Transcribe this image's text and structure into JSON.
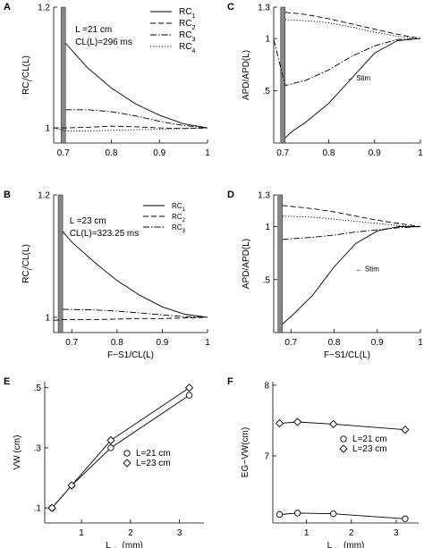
{
  "chart_data": [
    {
      "panel": "A",
      "type": "line",
      "ylabel": "RC_i/CL(L)",
      "xlim": [
        0.68,
        1.0
      ],
      "ylim": [
        0.975,
        1.2
      ],
      "xticks": [
        "0.7",
        "0.8",
        "0.9",
        "1"
      ],
      "yticks": [
        {
          "v": 1.0,
          "t": "1"
        },
        {
          "v": 1.2,
          "t": "1.2"
        }
      ],
      "annotation": [
        "L =21 cm",
        "CL(L)=296 ms"
      ],
      "legend": {
        "placement": "top-right",
        "entries": [
          "RC",
          "RC",
          "RC",
          "RC"
        ],
        "subscripts": [
          "1",
          "2",
          "3",
          "4"
        ],
        "styles": [
          "solid",
          "dashed",
          "dashdot",
          "dotted"
        ]
      },
      "stim_bar": 0.7,
      "series": [
        {
          "name": "RC1",
          "style": "solid",
          "x": [
            0.705,
            0.75,
            0.8,
            0.85,
            0.9,
            0.95,
            1.0
          ],
          "y": [
            1.14,
            1.1,
            1.066,
            1.04,
            1.021,
            1.007,
            1.0
          ]
        },
        {
          "name": "RC2",
          "style": "dashed",
          "x": [
            0.68,
            0.705,
            0.75,
            0.8,
            0.85,
            0.9,
            0.95,
            1.0
          ],
          "y": [
            1.0,
            1.0,
            1.001,
            1.003,
            1.002,
            1.0,
            0.999,
            1.0
          ]
        },
        {
          "name": "RC3",
          "style": "dashdot",
          "x": [
            0.705,
            0.75,
            0.8,
            0.85,
            0.9,
            0.95,
            1.0
          ],
          "y": [
            1.03,
            1.03,
            1.027,
            1.02,
            1.011,
            1.004,
            1.0
          ]
        },
        {
          "name": "RC4",
          "style": "dotted",
          "x": [
            0.68,
            0.705,
            0.75,
            0.8,
            0.85,
            0.9,
            0.95,
            1.0
          ],
          "y": [
            1.0,
            0.995,
            0.995,
            0.996,
            0.997,
            0.998,
            0.999,
            1.0
          ]
        }
      ]
    },
    {
      "panel": "B",
      "type": "line",
      "ylabel": "RC_i/CL(L)",
      "xlabel": "F−S1/CL(L)",
      "xlim": [
        0.66,
        1.0
      ],
      "ylim": [
        0.975,
        1.2
      ],
      "xticks": [
        "0.7",
        "0.8",
        "0.9",
        "1"
      ],
      "yticks": [
        {
          "v": 1.0,
          "t": "1"
        },
        {
          "v": 1.2,
          "t": "1.2"
        }
      ],
      "annotation": [
        "L =23 cm",
        "CL(L)=323.25 ms"
      ],
      "legend": {
        "placement": "top-right",
        "entries": [
          "RC",
          "RC",
          "RC"
        ],
        "subscripts": [
          "1",
          "2",
          "3"
        ],
        "styles": [
          "solid",
          "dashed",
          "dashdot"
        ]
      },
      "stim_bar": 0.675,
      "series": [
        {
          "name": "RC1",
          "style": "solid",
          "x": [
            0.68,
            0.7,
            0.75,
            0.8,
            0.85,
            0.9,
            0.95,
            1.0
          ],
          "y": [
            1.14,
            1.123,
            1.09,
            1.06,
            1.036,
            1.017,
            1.005,
            1.0
          ]
        },
        {
          "name": "RC2",
          "style": "dashed",
          "x": [
            0.66,
            0.68,
            0.75,
            0.8,
            0.85,
            0.9,
            0.95,
            1.0
          ],
          "y": [
            0.995,
            0.996,
            0.996,
            0.997,
            0.998,
            0.998,
            0.999,
            1.0
          ]
        },
        {
          "name": "RC3",
          "style": "dashdot",
          "x": [
            0.68,
            0.75,
            0.8,
            0.85,
            0.9,
            0.95,
            1.0
          ],
          "y": [
            1.013,
            1.012,
            1.01,
            1.007,
            1.004,
            1.001,
            1.0
          ]
        }
      ]
    },
    {
      "panel": "C",
      "type": "line",
      "ylabel": "APD/APD(L)",
      "xlim": [
        0.68,
        1.0
      ],
      "ylim": [
        0.0,
        1.3
      ],
      "xticks": [
        "0.7",
        "0.8",
        "0.9",
        "1"
      ],
      "yticks": [
        {
          "v": 0.5,
          "t": ".5"
        },
        {
          "v": 1.0,
          "t": "1"
        },
        {
          "v": 1.3,
          "t": "1.3"
        }
      ],
      "annotation": [
        "← Stim"
      ],
      "stim_bar": 0.7,
      "series": [
        {
          "name": "RC1",
          "style": "solid",
          "x": [
            0.705,
            0.72,
            0.75,
            0.8,
            0.85,
            0.9,
            0.95,
            1.0
          ],
          "y": [
            0.05,
            0.11,
            0.2,
            0.38,
            0.62,
            0.86,
            0.98,
            1.0
          ]
        },
        {
          "name": "RC2",
          "style": "dashed",
          "x": [
            0.705,
            0.75,
            0.8,
            0.85,
            0.9,
            0.95,
            1.0
          ],
          "y": [
            1.25,
            1.23,
            1.19,
            1.14,
            1.09,
            1.04,
            1.0
          ]
        },
        {
          "name": "RC3",
          "style": "dashdot",
          "x": [
            0.68,
            0.705,
            0.75,
            0.8,
            0.85,
            0.9,
            0.95,
            1.0
          ],
          "y": [
            0.99,
            0.55,
            0.6,
            0.7,
            0.83,
            0.93,
            0.99,
            1.0
          ]
        },
        {
          "name": "RC4",
          "style": "dotted",
          "x": [
            0.705,
            0.75,
            0.8,
            0.85,
            0.9,
            0.95,
            1.0
          ],
          "y": [
            1.18,
            1.17,
            1.15,
            1.11,
            1.06,
            1.02,
            1.0
          ]
        }
      ]
    },
    {
      "panel": "D",
      "type": "line",
      "ylabel": "APD/APD(L)",
      "xlabel": "F−S1/CL(L)",
      "xlim": [
        0.66,
        1.0
      ],
      "ylim": [
        0.0,
        1.3
      ],
      "xticks": [
        "0.7",
        "0.8",
        "0.9",
        "1"
      ],
      "yticks": [
        {
          "v": 0.5,
          "t": ".5"
        },
        {
          "v": 1.0,
          "t": "1"
        },
        {
          "v": 1.3,
          "t": "1.3"
        }
      ],
      "annotation": [
        "← Stim"
      ],
      "stim_bar": 0.675,
      "series": [
        {
          "name": "RC1",
          "style": "solid",
          "x": [
            0.68,
            0.7,
            0.75,
            0.8,
            0.85,
            0.9,
            0.95,
            1.0
          ],
          "y": [
            0.08,
            0.15,
            0.35,
            0.62,
            0.84,
            0.96,
            1.0,
            1.0
          ]
        },
        {
          "name": "RC2",
          "style": "dashed",
          "x": [
            0.68,
            0.75,
            0.8,
            0.85,
            0.9,
            0.95,
            1.0
          ],
          "y": [
            1.2,
            1.17,
            1.14,
            1.1,
            1.06,
            1.03,
            1.0
          ]
        },
        {
          "name": "RC3",
          "style": "dashdot",
          "x": [
            0.68,
            0.75,
            0.8,
            0.85,
            0.9,
            0.95,
            1.0
          ],
          "y": [
            0.88,
            0.9,
            0.92,
            0.95,
            0.97,
            0.99,
            1.0
          ]
        },
        {
          "name": "RC4",
          "style": "dotted",
          "x": [
            0.68,
            0.75,
            0.8,
            0.85,
            0.9,
            0.95,
            1.0
          ],
          "y": [
            1.1,
            1.09,
            1.07,
            1.05,
            1.03,
            1.01,
            1.0
          ]
        }
      ]
    },
    {
      "panel": "E",
      "type": "line",
      "ylabel": "VW (cm)",
      "xlabel": "L",
      "xlabel_sub": "stim",
      "xlabel_suffix": "(mm)",
      "xlim": [
        0.25,
        3.5
      ],
      "ylim": [
        0.05,
        0.52
      ],
      "xticks": [
        "1",
        "2",
        "3"
      ],
      "xtick_values": [
        1,
        2,
        3
      ],
      "yticks": [
        {
          "v": 0.1,
          "t": ".1"
        },
        {
          "v": 0.3,
          "t": ".3"
        },
        {
          "v": 0.5,
          "t": ".5"
        }
      ],
      "legend": {
        "placement": "lower-right",
        "entries": [
          "L=21 cm",
          "L=23 cm"
        ],
        "markers": [
          "circle",
          "diamond"
        ]
      },
      "series": [
        {
          "name": "L=21 cm",
          "marker": "circle",
          "x": [
            0.4,
            0.8,
            1.6,
            3.2
          ],
          "y": [
            0.1,
            0.175,
            0.3,
            0.475
          ]
        },
        {
          "name": "L=23 cm",
          "marker": "diamond",
          "x": [
            0.4,
            0.8,
            1.6,
            3.2
          ],
          "y": [
            0.1,
            0.175,
            0.325,
            0.5
          ]
        }
      ]
    },
    {
      "panel": "F",
      "type": "line",
      "ylabel": "EG−VW(cm)",
      "xlabel": "L",
      "xlabel_sub": "stim",
      "xlabel_suffix": "(mm)",
      "xlim": [
        0.25,
        3.5
      ],
      "ylim": [
        6.05,
        8.05
      ],
      "xticks": [
        "1",
        "2",
        "3"
      ],
      "xtick_values": [
        1,
        2,
        3
      ],
      "yticks": [
        {
          "v": 6.0,
          "t": "6"
        },
        {
          "v": 7.0,
          "t": "7"
        },
        {
          "v": 8.0,
          "t": "8"
        }
      ],
      "legend": {
        "placement": "center-right",
        "entries": [
          "L=21 cm",
          "L=23 cm"
        ],
        "markers": [
          "circle",
          "diamond"
        ]
      },
      "series": [
        {
          "name": "L=21 cm",
          "marker": "circle",
          "x": [
            0.4,
            0.8,
            1.6,
            3.2
          ],
          "y": [
            6.17,
            6.19,
            6.18,
            6.11
          ]
        },
        {
          "name": "L=23 cm",
          "marker": "diamond",
          "x": [
            0.4,
            0.8,
            1.6,
            3.2
          ],
          "y": [
            7.46,
            7.48,
            7.45,
            7.37
          ]
        }
      ]
    }
  ]
}
